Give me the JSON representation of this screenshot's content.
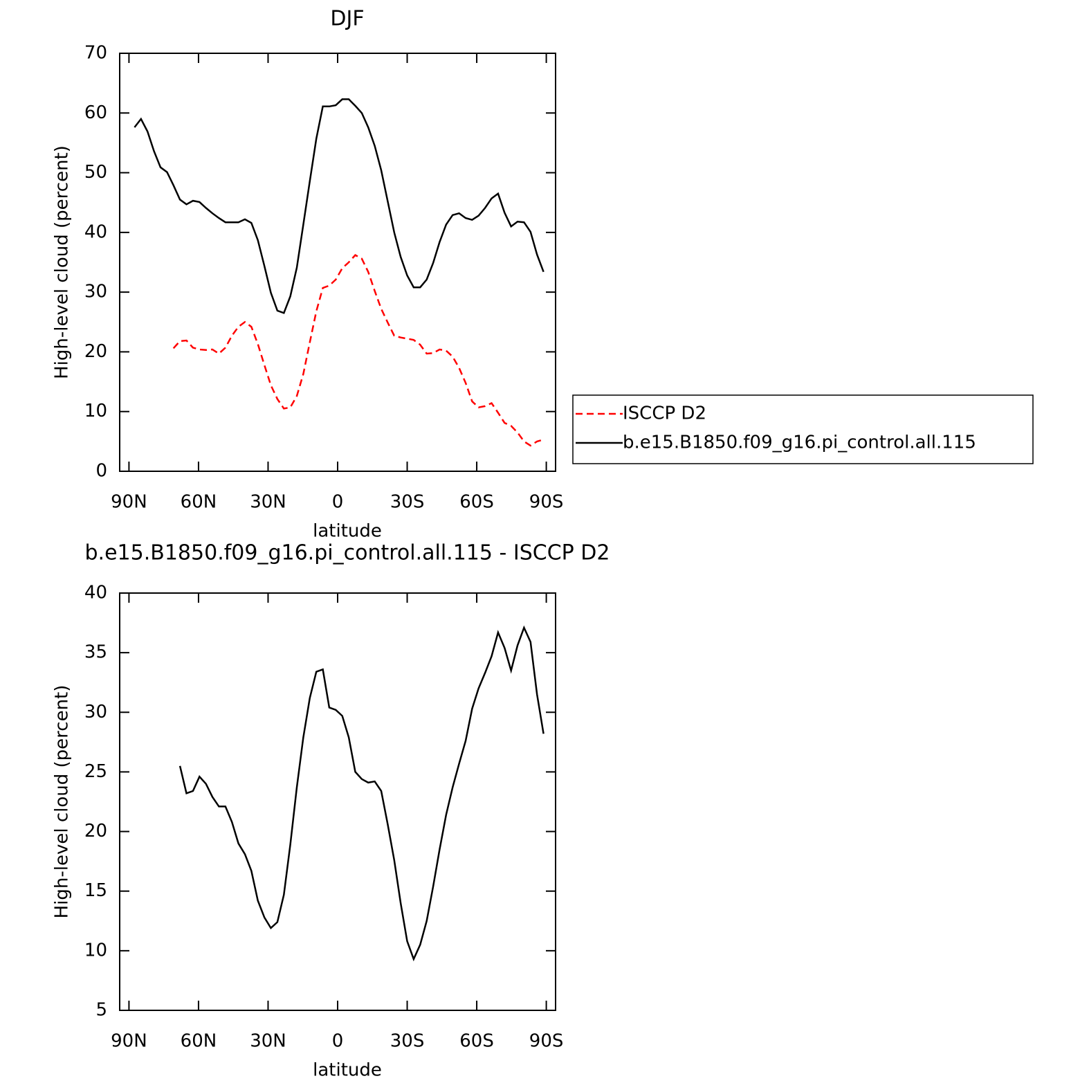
{
  "chart_data": [
    {
      "type": "line",
      "title": "DJF",
      "xlabel": "latitude",
      "ylabel": "High-level cloud (percent)",
      "xlim": [
        94,
        -94
      ],
      "ylim": [
        0,
        70
      ],
      "xticks": [
        {
          "value": 90,
          "label": "90N"
        },
        {
          "value": 60,
          "label": "60N"
        },
        {
          "value": 30,
          "label": "30N"
        },
        0,
        {
          "value": -30,
          "label": "30S"
        },
        {
          "value": -60,
          "label": "60S"
        },
        {
          "value": -90,
          "label": "90S"
        }
      ],
      "yticks": [
        0,
        10,
        20,
        30,
        40,
        50,
        60,
        70
      ],
      "legend": "right",
      "x": [
        87.6,
        84.8,
        82.0,
        79.2,
        76.4,
        73.6,
        70.8,
        68.0,
        65.2,
        62.4,
        59.6,
        56.8,
        54.0,
        51.2,
        48.4,
        45.6,
        42.8,
        40.0,
        37.2,
        34.4,
        31.6,
        28.8,
        26.0,
        23.2,
        20.4,
        17.6,
        14.8,
        12.0,
        9.2,
        6.4,
        3.6,
        0.8,
        -2.0,
        -4.8,
        -7.6,
        -10.4,
        -13.2,
        -16.0,
        -18.8,
        -21.6,
        -24.4,
        -27.2,
        -30.0,
        -32.8,
        -35.6,
        -38.4,
        -41.2,
        -44.0,
        -46.8,
        -49.6,
        -52.4,
        -55.2,
        -58.0,
        -60.8,
        -63.6,
        -66.4,
        -69.2,
        -72.0,
        -74.8,
        -77.6,
        -80.4,
        -83.2,
        -86.0,
        -88.8
      ],
      "series": [
        {
          "name": "ISCCP D2",
          "color": "#ff0000",
          "dash": true,
          "values": [
            null,
            null,
            null,
            null,
            null,
            null,
            20.6,
            21.8,
            21.9,
            20.7,
            20.4,
            20.3,
            20.4,
            19.7,
            20.7,
            22.7,
            24.2,
            25.0,
            24.2,
            21.3,
            17.8,
            14.4,
            12.1,
            10.5,
            10.7,
            12.6,
            16.3,
            21.6,
            26.8,
            30.7,
            31.1,
            32.1,
            34.0,
            35.0,
            36.2,
            35.6,
            33.4,
            30.2,
            27.2,
            24.9,
            22.7,
            22.4,
            22.2,
            22.0,
            21.2,
            19.7,
            19.8,
            20.4,
            20.2,
            19.2,
            17.3,
            14.8,
            11.7,
            10.7,
            10.9,
            11.4,
            9.8,
            8.1,
            7.6,
            6.5,
            5.0,
            4.3,
            5.0,
            5.3
          ]
        },
        {
          "name": "b.e15.B1850.f09_g16.pi_control.all.115",
          "color": "#000000",
          "dash": false,
          "values": [
            57.6,
            59.0,
            56.9,
            53.6,
            50.9,
            50.1,
            47.9,
            45.5,
            44.7,
            45.3,
            45.1,
            44.1,
            43.2,
            42.4,
            41.7,
            41.7,
            41.7,
            42.2,
            41.6,
            38.7,
            34.4,
            29.9,
            26.9,
            26.5,
            29.3,
            34.1,
            41.3,
            48.6,
            55.7,
            61.1,
            61.1,
            61.3,
            62.3,
            62.3,
            61.2,
            60.0,
            57.6,
            54.5,
            50.4,
            45.2,
            40.0,
            35.9,
            32.8,
            30.8,
            30.8,
            32.1,
            34.9,
            38.4,
            41.3,
            42.9,
            43.2,
            42.4,
            42.1,
            42.8,
            44.1,
            45.7,
            46.5,
            43.3,
            41.0,
            41.8,
            41.7,
            40.1,
            36.3,
            33.4
          ]
        }
      ]
    },
    {
      "type": "line",
      "title": "b.e15.B1850.f09_g16.pi_control.all.115 - ISCCP D2",
      "xlabel": "latitude",
      "ylabel": "High-level cloud (percent)",
      "xlim": [
        94,
        -94
      ],
      "ylim": [
        5,
        40
      ],
      "xticks": [
        {
          "value": 90,
          "label": "90N"
        },
        {
          "value": 60,
          "label": "60N"
        },
        {
          "value": 30,
          "label": "30N"
        },
        0,
        {
          "value": -30,
          "label": "30S"
        },
        {
          "value": -60,
          "label": "60S"
        },
        {
          "value": -90,
          "label": "90S"
        }
      ],
      "yticks": [
        5,
        10,
        15,
        20,
        25,
        30,
        35,
        40
      ],
      "x": [
        87.6,
        84.8,
        82.0,
        79.2,
        76.4,
        73.6,
        70.8,
        68.0,
        65.2,
        62.4,
        59.6,
        56.8,
        54.0,
        51.2,
        48.4,
        45.6,
        42.8,
        40.0,
        37.2,
        34.4,
        31.6,
        28.8,
        26.0,
        23.2,
        20.4,
        17.6,
        14.8,
        12.0,
        9.2,
        6.4,
        3.6,
        0.8,
        -2.0,
        -4.8,
        -7.6,
        -10.4,
        -13.2,
        -16.0,
        -18.8,
        -21.6,
        -24.4,
        -27.2,
        -30.0,
        -32.8,
        -35.6,
        -38.4,
        -41.2,
        -44.0,
        -46.8,
        -49.6,
        -52.4,
        -55.2,
        -58.0,
        -60.8,
        -63.6,
        -66.4,
        -69.2,
        -72.0,
        -74.8,
        -77.6,
        -80.4,
        -83.2,
        -86.0,
        -88.8
      ],
      "color": "#000000",
      "values": [
        null,
        null,
        null,
        null,
        null,
        null,
        null,
        25.5,
        23.2,
        23.4,
        24.6,
        24.0,
        22.9,
        22.1,
        22.1,
        20.8,
        19.0,
        18.1,
        16.7,
        14.2,
        12.8,
        11.9,
        12.4,
        14.7,
        18.9,
        23.7,
        27.9,
        31.2,
        33.4,
        33.6,
        30.4,
        30.2,
        29.7,
        27.9,
        25.0,
        24.4,
        24.1,
        24.2,
        23.4,
        20.6,
        17.6,
        14.0,
        10.8,
        9.3,
        10.5,
        12.5,
        15.4,
        18.5,
        21.4,
        23.7,
        25.7,
        27.6,
        30.3,
        32.0,
        33.3,
        34.7,
        36.7,
        35.4,
        33.5,
        35.6,
        37.1,
        35.9,
        31.5,
        28.2
      ]
    }
  ]
}
